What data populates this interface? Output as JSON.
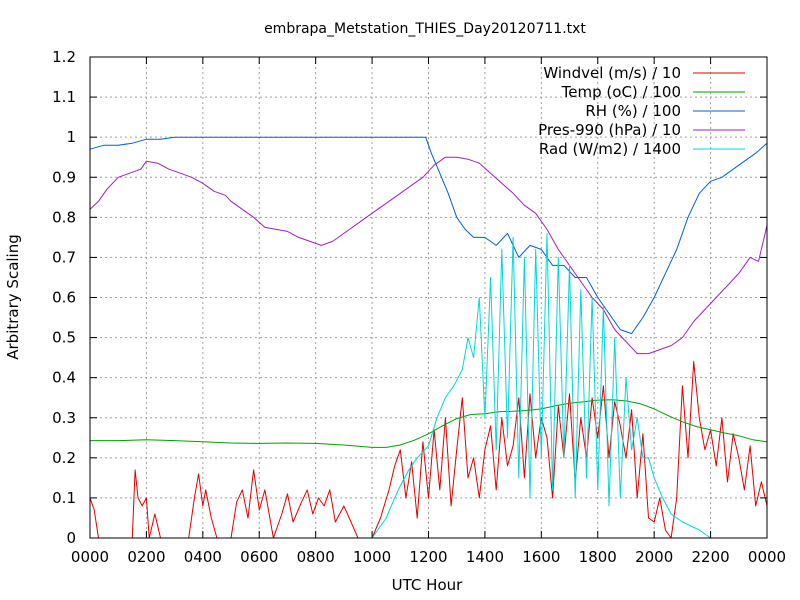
{
  "chart_data": {
    "type": "line",
    "title": "embrapa_Metstation_THIES_Day20120711.txt",
    "xlabel": "UTC Hour",
    "ylabel": "Arbitrary Scaling",
    "xlim": [
      0,
      24
    ],
    "ylim": [
      0,
      1.2
    ],
    "grid": true,
    "legend_position": "top-right",
    "x_ticks": [
      {
        "value": 0,
        "label": "0000"
      },
      {
        "value": 2,
        "label": "0200"
      },
      {
        "value": 4,
        "label": "0400"
      },
      {
        "value": 6,
        "label": "0600"
      },
      {
        "value": 8,
        "label": "0800"
      },
      {
        "value": 10,
        "label": "1000"
      },
      {
        "value": 12,
        "label": "1200"
      },
      {
        "value": 14,
        "label": "1400"
      },
      {
        "value": 16,
        "label": "1600"
      },
      {
        "value": 18,
        "label": "1800"
      },
      {
        "value": 20,
        "label": "2000"
      },
      {
        "value": 22,
        "label": "2200"
      },
      {
        "value": 24,
        "label": "0000"
      }
    ],
    "y_ticks": [
      {
        "value": 0,
        "label": "0"
      },
      {
        "value": 0.1,
        "label": "0.1"
      },
      {
        "value": 0.2,
        "label": "0.2"
      },
      {
        "value": 0.3,
        "label": "0.3"
      },
      {
        "value": 0.4,
        "label": "0.4"
      },
      {
        "value": 0.5,
        "label": "0.5"
      },
      {
        "value": 0.6,
        "label": "0.6"
      },
      {
        "value": 0.7,
        "label": "0.7"
      },
      {
        "value": 0.8,
        "label": "0.8"
      },
      {
        "value": 0.9,
        "label": "0.9"
      },
      {
        "value": 1,
        "label": "1"
      },
      {
        "value": 1.1,
        "label": "1.1"
      },
      {
        "value": 1.2,
        "label": "1.2"
      }
    ],
    "series": [
      {
        "name": "Windvel (m/s) / 10",
        "color": "#e00000",
        "x": [
          0,
          0.15,
          0.3,
          0.5,
          1.0,
          1.5,
          1.6,
          1.7,
          1.85,
          2.0,
          2.1,
          2.3,
          2.5,
          3.0,
          3.5,
          3.7,
          3.85,
          4.0,
          4.1,
          4.3,
          4.5,
          5.0,
          5.2,
          5.4,
          5.6,
          5.8,
          6.0,
          6.2,
          6.5,
          6.8,
          7.0,
          7.2,
          7.5,
          7.7,
          7.9,
          8.1,
          8.3,
          8.5,
          8.7,
          9.0,
          9.5,
          9.8,
          10.0,
          10.3,
          10.6,
          10.8,
          11.0,
          11.2,
          11.4,
          11.6,
          11.8,
          12.0,
          12.2,
          12.4,
          12.6,
          12.8,
          13.0,
          13.2,
          13.4,
          13.6,
          13.8,
          14.0,
          14.2,
          14.4,
          14.6,
          14.8,
          15.0,
          15.2,
          15.4,
          15.6,
          15.8,
          16.0,
          16.2,
          16.4,
          16.6,
          16.8,
          17.0,
          17.2,
          17.4,
          17.6,
          17.8,
          18.0,
          18.2,
          18.4,
          18.6,
          18.8,
          19.0,
          19.2,
          19.4,
          19.6,
          19.8,
          20.0,
          20.2,
          20.4,
          20.6,
          20.8,
          21.0,
          21.2,
          21.4,
          21.6,
          21.8,
          22.0,
          22.2,
          22.4,
          22.6,
          22.8,
          23.0,
          23.2,
          23.4,
          23.6,
          23.8,
          24.0
        ],
        "y": [
          0.1,
          0.07,
          0.0,
          0.0,
          0.0,
          0.0,
          0.17,
          0.1,
          0.08,
          0.1,
          0.0,
          0.06,
          0.0,
          0.0,
          0.0,
          0.1,
          0.16,
          0.08,
          0.12,
          0.05,
          0.0,
          0.0,
          0.09,
          0.12,
          0.05,
          0.17,
          0.07,
          0.12,
          0.0,
          0.06,
          0.11,
          0.04,
          0.09,
          0.12,
          0.06,
          0.1,
          0.08,
          0.12,
          0.04,
          0.08,
          0.0,
          0.0,
          0.0,
          0.05,
          0.12,
          0.18,
          0.22,
          0.1,
          0.19,
          0.05,
          0.24,
          0.1,
          0.27,
          0.12,
          0.3,
          0.08,
          0.22,
          0.35,
          0.15,
          0.2,
          0.1,
          0.22,
          0.28,
          0.12,
          0.3,
          0.18,
          0.23,
          0.35,
          0.15,
          0.36,
          0.2,
          0.3,
          0.25,
          0.1,
          0.33,
          0.2,
          0.36,
          0.14,
          0.3,
          0.2,
          0.35,
          0.25,
          0.38,
          0.2,
          0.34,
          0.28,
          0.2,
          0.32,
          0.1,
          0.26,
          0.05,
          0.04,
          0.1,
          0.02,
          0.0,
          0.1,
          0.38,
          0.2,
          0.44,
          0.3,
          0.22,
          0.27,
          0.18,
          0.3,
          0.14,
          0.26,
          0.2,
          0.12,
          0.23,
          0.08,
          0.14,
          0.08
        ]
      },
      {
        "name": "Temp (oC) / 100",
        "color": "#00a000",
        "x": [
          0,
          1,
          2,
          3,
          4,
          5,
          6,
          7,
          8,
          9,
          10,
          10.5,
          11,
          11.5,
          12,
          12.5,
          13,
          13.5,
          14,
          14.5,
          15,
          15.5,
          16,
          16.5,
          17,
          17.5,
          18,
          18.5,
          19,
          19.5,
          20,
          20.5,
          21,
          21.5,
          22,
          22.5,
          23,
          23.5,
          24
        ],
        "y": [
          0.243,
          0.243,
          0.245,
          0.243,
          0.24,
          0.237,
          0.236,
          0.237,
          0.236,
          0.232,
          0.226,
          0.226,
          0.232,
          0.244,
          0.26,
          0.28,
          0.298,
          0.308,
          0.31,
          0.315,
          0.316,
          0.318,
          0.322,
          0.33,
          0.336,
          0.34,
          0.344,
          0.345,
          0.342,
          0.335,
          0.322,
          0.305,
          0.29,
          0.278,
          0.27,
          0.262,
          0.255,
          0.245,
          0.24
        ]
      },
      {
        "name": "RH (%) / 100",
        "color": "#0060d0",
        "x": [
          0,
          0.5,
          1,
          1.5,
          2,
          2.5,
          3,
          4,
          5,
          6,
          7,
          8,
          9,
          10,
          11,
          11.9,
          12.1,
          12.4,
          12.7,
          13.0,
          13.3,
          13.6,
          14.0,
          14.4,
          14.8,
          15.2,
          15.6,
          16.0,
          16.4,
          16.8,
          17.2,
          17.6,
          18.0,
          18.4,
          18.8,
          19.2,
          19.6,
          20.0,
          20.4,
          20.8,
          21.2,
          21.6,
          22.0,
          22.4,
          22.8,
          23.2,
          23.6,
          24.0
        ],
        "y": [
          0.97,
          0.98,
          0.98,
          0.985,
          0.995,
          0.995,
          1.0,
          1.0,
          1.0,
          1.0,
          1.0,
          1.0,
          1.0,
          1.0,
          1.0,
          1.0,
          0.96,
          0.91,
          0.86,
          0.8,
          0.77,
          0.75,
          0.75,
          0.73,
          0.76,
          0.7,
          0.73,
          0.72,
          0.68,
          0.68,
          0.65,
          0.65,
          0.6,
          0.56,
          0.52,
          0.51,
          0.55,
          0.6,
          0.66,
          0.72,
          0.8,
          0.86,
          0.89,
          0.9,
          0.92,
          0.94,
          0.96,
          0.985
        ]
      },
      {
        "name": "Pres-990 (hPa) / 10",
        "color": "#a020c0",
        "x": [
          0,
          0.3,
          0.6,
          1.0,
          1.4,
          1.8,
          2.0,
          2.4,
          2.8,
          3.2,
          3.6,
          4.0,
          4.4,
          4.8,
          5.0,
          5.4,
          5.8,
          6.2,
          6.6,
          7.0,
          7.4,
          7.8,
          8.2,
          8.6,
          9.0,
          9.4,
          9.8,
          10.2,
          10.6,
          11.0,
          11.4,
          11.8,
          12.2,
          12.6,
          13.0,
          13.4,
          13.8,
          14.2,
          14.6,
          15.0,
          15.4,
          15.8,
          16.2,
          16.6,
          17.0,
          17.4,
          17.8,
          18.2,
          18.6,
          19.0,
          19.4,
          19.8,
          20.2,
          20.6,
          21.0,
          21.4,
          21.8,
          22.2,
          22.6,
          23.0,
          23.4,
          23.7,
          23.9,
          24.0
        ],
        "y": [
          0.82,
          0.84,
          0.87,
          0.9,
          0.91,
          0.92,
          0.94,
          0.935,
          0.92,
          0.91,
          0.9,
          0.885,
          0.865,
          0.855,
          0.84,
          0.82,
          0.8,
          0.775,
          0.77,
          0.765,
          0.75,
          0.74,
          0.73,
          0.74,
          0.76,
          0.78,
          0.8,
          0.82,
          0.84,
          0.86,
          0.88,
          0.9,
          0.93,
          0.95,
          0.95,
          0.945,
          0.935,
          0.91,
          0.885,
          0.86,
          0.83,
          0.81,
          0.77,
          0.72,
          0.68,
          0.64,
          0.6,
          0.57,
          0.52,
          0.49,
          0.46,
          0.46,
          0.47,
          0.48,
          0.5,
          0.54,
          0.57,
          0.6,
          0.63,
          0.66,
          0.7,
          0.69,
          0.75,
          0.78
        ]
      },
      {
        "name": "Rad (W/m2) / 1400",
        "color": "#00d8d8",
        "x": [
          0,
          10.0,
          10.2,
          10.5,
          10.8,
          11.0,
          11.3,
          11.6,
          12.0,
          12.3,
          12.6,
          12.9,
          13.2,
          13.4,
          13.6,
          13.8,
          14.0,
          14.2,
          14.4,
          14.6,
          14.8,
          15.0,
          15.2,
          15.4,
          15.6,
          15.8,
          16.0,
          16.2,
          16.4,
          16.6,
          16.8,
          17.0,
          17.2,
          17.4,
          17.6,
          17.8,
          18.0,
          18.2,
          18.4,
          18.6,
          18.8,
          19.0,
          19.2,
          19.4,
          19.6,
          19.8,
          20.0,
          20.3,
          20.6,
          21.0,
          21.3,
          21.6,
          22.0,
          24.0
        ],
        "y": [
          0,
          0.0,
          0.02,
          0.05,
          0.1,
          0.13,
          0.17,
          0.2,
          0.23,
          0.3,
          0.35,
          0.38,
          0.42,
          0.5,
          0.45,
          0.6,
          0.3,
          0.65,
          0.22,
          0.72,
          0.25,
          0.75,
          0.15,
          0.7,
          0.1,
          0.72,
          0.2,
          0.76,
          0.12,
          0.7,
          0.2,
          0.68,
          0.1,
          0.62,
          0.15,
          0.6,
          0.12,
          0.58,
          0.08,
          0.5,
          0.1,
          0.4,
          0.22,
          0.3,
          0.2,
          0.2,
          0.15,
          0.1,
          0.06,
          0.04,
          0.03,
          0.02,
          0.0,
          0.0
        ]
      }
    ]
  }
}
